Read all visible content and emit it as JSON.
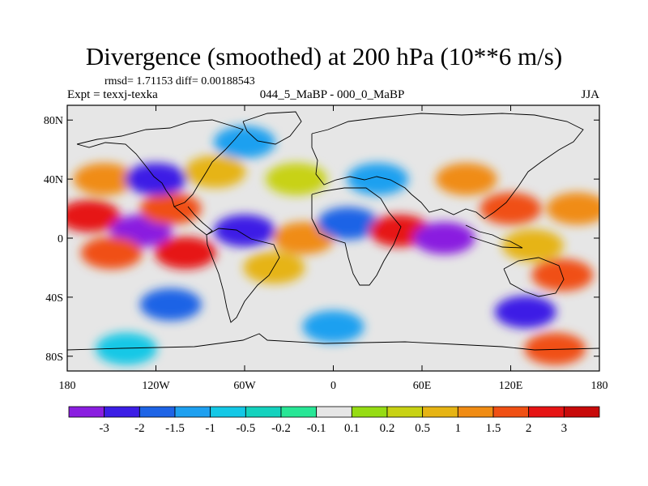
{
  "header": {
    "title": "Divergence (smoothed) at 200 hPa (10**6 m/s)",
    "stats": "rmsd= 1.71153 diff= 0.00188543",
    "experiment": "Expt = texxj-texka",
    "period": "044_5_MaBP - 000_0_MaBP",
    "season": "JJA"
  },
  "chart_data": {
    "type": "heatmap",
    "title": "Divergence (smoothed) at 200 hPa (10**6 m/s)",
    "xlabel": "",
    "ylabel": "",
    "xlim": [
      -180,
      180
    ],
    "ylim": [
      -90,
      90
    ],
    "x_ticks": [
      {
        "value": -180,
        "label": "180"
      },
      {
        "value": -120,
        "label": "120W"
      },
      {
        "value": -60,
        "label": "60W"
      },
      {
        "value": 0,
        "label": "0"
      },
      {
        "value": 60,
        "label": "60E"
      },
      {
        "value": 120,
        "label": "120E"
      },
      {
        "value": 180,
        "label": "180"
      }
    ],
    "y_ticks": [
      {
        "value": 80,
        "label": "80N"
      },
      {
        "value": 40,
        "label": "40N"
      },
      {
        "value": 0,
        "label": "0"
      },
      {
        "value": -40,
        "label": "40S"
      },
      {
        "value": -80,
        "label": "80S"
      }
    ],
    "colorbar": {
      "labels": [
        "-3",
        "-2",
        "-1.5",
        "-1",
        "-0.5",
        "-0.2",
        "-0.1",
        "0.1",
        "0.2",
        "0.5",
        "1",
        "1.5",
        "2",
        "3"
      ],
      "colors": [
        "#8a1ee0",
        "#3c1ee6",
        "#1e64e6",
        "#1ea0f0",
        "#14c8e6",
        "#14d2be",
        "#28e696",
        "#e6e6e6",
        "#96dc14",
        "#c8d214",
        "#e6b414",
        "#f08c14",
        "#f05014",
        "#e61414",
        "#c80a0a"
      ]
    },
    "field_regions": [
      {
        "lon": -155,
        "lat": 40,
        "value": 1.5
      },
      {
        "lon": -165,
        "lat": 15,
        "value": 3
      },
      {
        "lon": -130,
        "lat": 5,
        "value": -3
      },
      {
        "lon": -150,
        "lat": -10,
        "value": 2
      },
      {
        "lon": -110,
        "lat": 20,
        "value": 2
      },
      {
        "lon": -100,
        "lat": -10,
        "value": 3
      },
      {
        "lon": -120,
        "lat": 40,
        "value": -2
      },
      {
        "lon": -80,
        "lat": 45,
        "value": 1
      },
      {
        "lon": -60,
        "lat": 65,
        "value": -1
      },
      {
        "lon": -60,
        "lat": 5,
        "value": -2
      },
      {
        "lon": -40,
        "lat": -20,
        "value": 1
      },
      {
        "lon": -25,
        "lat": 40,
        "value": 0.5
      },
      {
        "lon": -20,
        "lat": 0,
        "value": 1.5
      },
      {
        "lon": 10,
        "lat": 10,
        "value": -1.5
      },
      {
        "lon": 30,
        "lat": 40,
        "value": -1
      },
      {
        "lon": 45,
        "lat": 5,
        "value": 3
      },
      {
        "lon": 75,
        "lat": 0,
        "value": -3
      },
      {
        "lon": 90,
        "lat": 40,
        "value": 1.5
      },
      {
        "lon": 120,
        "lat": 20,
        "value": 2
      },
      {
        "lon": 135,
        "lat": -5,
        "value": 1
      },
      {
        "lon": 165,
        "lat": 20,
        "value": 1.5
      },
      {
        "lon": 155,
        "lat": -25,
        "value": 2
      },
      {
        "lon": 130,
        "lat": -50,
        "value": -2
      },
      {
        "lon": -110,
        "lat": -45,
        "value": -1.5
      },
      {
        "lon": 0,
        "lat": -60,
        "value": -1
      },
      {
        "lon": -140,
        "lat": -75,
        "value": -0.5
      },
      {
        "lon": 150,
        "lat": -75,
        "value": 2
      }
    ]
  }
}
